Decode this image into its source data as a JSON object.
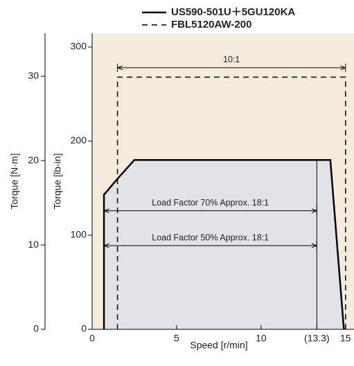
{
  "chart_data": {
    "type": "line",
    "xlabel": "Speed [r/min]",
    "ylabel": "Torque [lb-in]",
    "y2label": "Torque [N·m]",
    "xlim": [
      0,
      15.5
    ],
    "xticks": [
      0,
      5,
      10,
      {
        "value": 13.3,
        "label": "(13.3)"
      },
      15
    ],
    "ylim": [
      0,
      314.7
    ],
    "yticks": [
      0,
      100,
      200,
      300
    ],
    "y2lim": [
      0,
      35.1
    ],
    "y2ticks": [
      0,
      10,
      20,
      30
    ],
    "background": "#f6ecdd",
    "fill": "#e1e3e8",
    "series": [
      {
        "name": "US590-501U＋5GU120KA",
        "color": "#000000",
        "dash": false,
        "fill": true,
        "x": [
          0.7,
          0.7,
          1.5,
          2.5,
          14.1,
          14.9
        ],
        "values": [
          0,
          143,
          160,
          180,
          180,
          0
        ]
      },
      {
        "name": "FBL5120AW-200",
        "color": "#000000",
        "dash": true,
        "fill": false,
        "x": [
          1.5,
          1.5,
          15,
          15
        ],
        "values": [
          0,
          268,
          268,
          0
        ]
      }
    ],
    "vlines": [
      {
        "x": 13.3,
        "y": [
          0,
          180
        ]
      }
    ],
    "annotations": [
      {
        "text": "10:1",
        "x": [
          1.5,
          15
        ],
        "y": 278
      },
      {
        "text": "Load Factor 70%  Approx. 18:1",
        "x": [
          0.7,
          13.3
        ],
        "y": 126
      },
      {
        "text": "Load Factor 50%  Approx. 18:1",
        "x": [
          0.7,
          13.3
        ],
        "y": 89
      }
    ]
  }
}
